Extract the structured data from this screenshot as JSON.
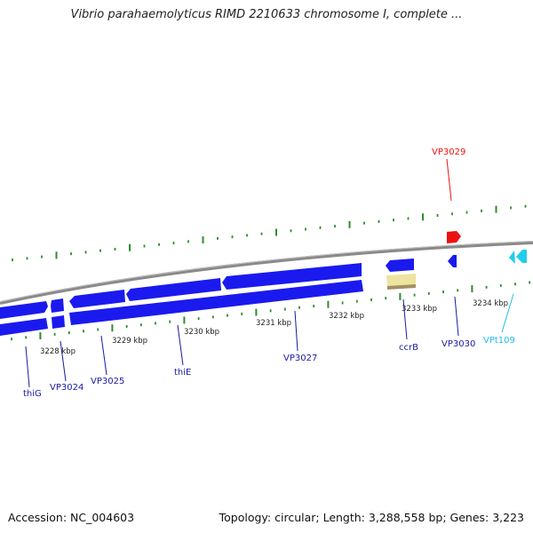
{
  "title": "Vibrio parahaemolyticus RIMD 2210633 chromosome I, complete ...",
  "footer": {
    "accession": "Accession: NC_004603",
    "summary": "Topology: circular; Length: 3,288,558 bp; Genes: 3,223"
  },
  "colors": {
    "forward_gene": "#1a1aee",
    "reverse_gene": "#1a1aee",
    "highlighted_gene": "#ee1111",
    "trna": "#22ccee",
    "repeat_region": "#eee4a0",
    "backbone": "#8a8a8a",
    "tick": "#2e8b2e",
    "gene_label": "#1a1aa0",
    "highlight_label": "#ee1111",
    "trna_label": "#22bbee"
  },
  "scale_labels": [
    "3228 kbp",
    "3229 kbp",
    "3230 kbp",
    "3231 kbp",
    "3232 kbp",
    "3233 kbp",
    "3234 kbp"
  ],
  "gene_labels": [
    {
      "id": "thiG",
      "label": "thiG",
      "kind": "gene"
    },
    {
      "id": "VP3024",
      "label": "VP3024",
      "kind": "gene"
    },
    {
      "id": "VP3025",
      "label": "VP3025",
      "kind": "gene"
    },
    {
      "id": "thiE",
      "label": "thiE",
      "kind": "gene"
    },
    {
      "id": "VP3027",
      "label": "VP3027",
      "kind": "gene"
    },
    {
      "id": "ccrB",
      "label": "ccrB",
      "kind": "gene"
    },
    {
      "id": "VP3030",
      "label": "VP3030",
      "kind": "gene"
    },
    {
      "id": "VPt109",
      "label": "VPt109",
      "kind": "trna"
    },
    {
      "id": "VP3029",
      "label": "VP3029",
      "kind": "highlight"
    }
  ]
}
